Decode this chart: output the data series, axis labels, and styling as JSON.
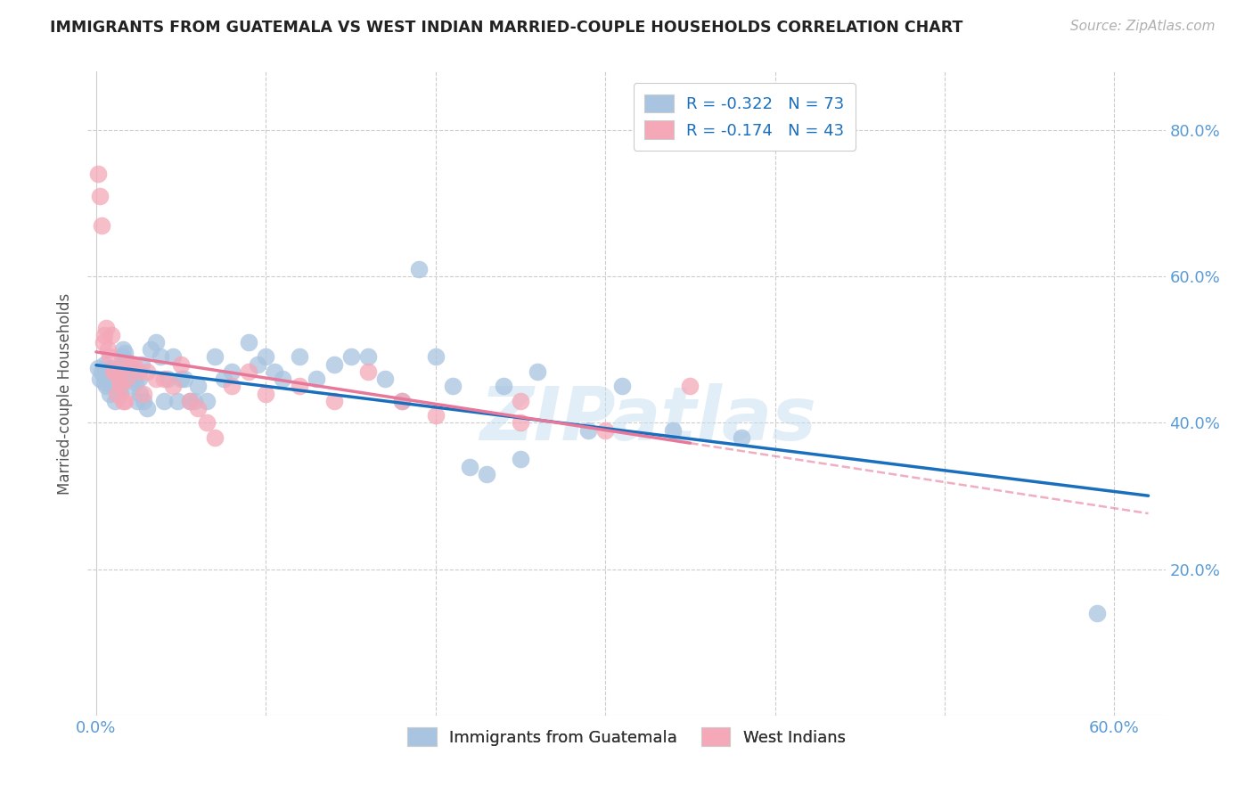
{
  "title": "IMMIGRANTS FROM GUATEMALA VS WEST INDIAN MARRIED-COUPLE HOUSEHOLDS CORRELATION CHART",
  "source": "Source: ZipAtlas.com",
  "ylabel_label": "Married-couple Households",
  "xlim": [
    -0.005,
    0.63
  ],
  "ylim": [
    0.0,
    0.88
  ],
  "blue_R": -0.322,
  "blue_N": 73,
  "pink_R": -0.174,
  "pink_N": 43,
  "blue_color": "#a8c4e0",
  "pink_color": "#f4a8b8",
  "blue_line_color": "#1a6fbd",
  "pink_line_color": "#e87899",
  "axis_color": "#5b9bd5",
  "legend_text_color": "#333333",
  "legend_val_color": "#1a6fbd",
  "watermark": "ZIPatlas",
  "blue_x": [
    0.001,
    0.002,
    0.003,
    0.004,
    0.005,
    0.005,
    0.006,
    0.007,
    0.008,
    0.008,
    0.009,
    0.01,
    0.011,
    0.012,
    0.013,
    0.014,
    0.015,
    0.016,
    0.016,
    0.017,
    0.018,
    0.019,
    0.02,
    0.021,
    0.022,
    0.023,
    0.024,
    0.025,
    0.026,
    0.027,
    0.028,
    0.03,
    0.032,
    0.035,
    0.038,
    0.04,
    0.042,
    0.045,
    0.048,
    0.05,
    0.052,
    0.055,
    0.058,
    0.06,
    0.065,
    0.07,
    0.075,
    0.08,
    0.09,
    0.095,
    0.1,
    0.105,
    0.11,
    0.12,
    0.13,
    0.14,
    0.15,
    0.16,
    0.17,
    0.18,
    0.19,
    0.2,
    0.21,
    0.22,
    0.23,
    0.24,
    0.25,
    0.26,
    0.29,
    0.31,
    0.34,
    0.38,
    0.59
  ],
  "blue_y": [
    0.475,
    0.46,
    0.47,
    0.465,
    0.455,
    0.48,
    0.45,
    0.46,
    0.455,
    0.44,
    0.475,
    0.45,
    0.43,
    0.46,
    0.445,
    0.44,
    0.49,
    0.48,
    0.5,
    0.495,
    0.485,
    0.46,
    0.475,
    0.45,
    0.46,
    0.455,
    0.43,
    0.46,
    0.44,
    0.48,
    0.43,
    0.42,
    0.5,
    0.51,
    0.49,
    0.43,
    0.46,
    0.49,
    0.43,
    0.46,
    0.46,
    0.43,
    0.43,
    0.45,
    0.43,
    0.49,
    0.46,
    0.47,
    0.51,
    0.48,
    0.49,
    0.47,
    0.46,
    0.49,
    0.46,
    0.48,
    0.49,
    0.49,
    0.46,
    0.43,
    0.61,
    0.49,
    0.45,
    0.34,
    0.33,
    0.45,
    0.35,
    0.47,
    0.39,
    0.45,
    0.39,
    0.38,
    0.14
  ],
  "pink_x": [
    0.001,
    0.002,
    0.003,
    0.004,
    0.005,
    0.006,
    0.007,
    0.008,
    0.009,
    0.01,
    0.011,
    0.012,
    0.013,
    0.014,
    0.015,
    0.016,
    0.017,
    0.018,
    0.02,
    0.022,
    0.025,
    0.028,
    0.03,
    0.035,
    0.04,
    0.045,
    0.05,
    0.055,
    0.06,
    0.065,
    0.07,
    0.08,
    0.09,
    0.1,
    0.12,
    0.14,
    0.16,
    0.18,
    0.2,
    0.25,
    0.3,
    0.35,
    0.25
  ],
  "pink_y": [
    0.74,
    0.71,
    0.67,
    0.51,
    0.52,
    0.53,
    0.5,
    0.49,
    0.52,
    0.47,
    0.47,
    0.44,
    0.46,
    0.45,
    0.48,
    0.43,
    0.43,
    0.46,
    0.48,
    0.48,
    0.47,
    0.44,
    0.47,
    0.46,
    0.46,
    0.45,
    0.48,
    0.43,
    0.42,
    0.4,
    0.38,
    0.45,
    0.47,
    0.44,
    0.45,
    0.43,
    0.47,
    0.43,
    0.41,
    0.4,
    0.39,
    0.45,
    0.43
  ]
}
